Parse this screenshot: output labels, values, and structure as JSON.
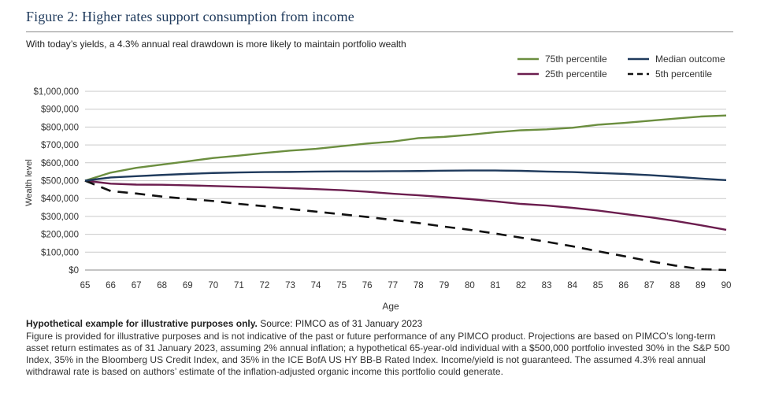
{
  "figure": {
    "title": "Figure 2: Higher rates support consumption from income",
    "subtitle": "With today’s yields, a 4.3% annual real drawdown is more likely to maintain portfolio wealth"
  },
  "chart_data": {
    "type": "line",
    "title": "Figure 2: Higher rates support consumption from income",
    "subtitle": "With today’s yields, a 4.3% annual real drawdown is more likely to maintain portfolio wealth",
    "xlabel": "Age",
    "ylabel": "Wealth level",
    "x": [
      65,
      66,
      67,
      68,
      69,
      70,
      71,
      72,
      73,
      74,
      75,
      76,
      77,
      78,
      79,
      80,
      81,
      82,
      83,
      84,
      85,
      86,
      87,
      88,
      89,
      90
    ],
    "xlim": [
      65,
      90
    ],
    "ylim": [
      0,
      1000000
    ],
    "yticks": [
      0,
      100000,
      200000,
      300000,
      400000,
      500000,
      600000,
      700000,
      800000,
      900000,
      1000000
    ],
    "ytick_labels": [
      "$0",
      "$100,000",
      "$200,000",
      "$300,000",
      "$400,000",
      "$500,000",
      "$600,000",
      "$700,000",
      "$800,000",
      "$900,000",
      "$1,000,000"
    ],
    "grid": true,
    "legend_position": "top-right",
    "series": [
      {
        "name": "75th percentile",
        "color": "#6b8e3f",
        "style": "solid",
        "values": [
          500000,
          545000,
          572000,
          590000,
          608000,
          627000,
          640000,
          655000,
          668000,
          678000,
          693000,
          708000,
          719000,
          738000,
          745000,
          757000,
          771000,
          782000,
          787000,
          796000,
          813000,
          823000,
          835000,
          847000,
          859000,
          865000
        ]
      },
      {
        "name": "Median outcome",
        "color": "#1f3a5c",
        "style": "solid",
        "values": [
          500000,
          518000,
          525000,
          532000,
          538000,
          543000,
          546000,
          548000,
          549000,
          551000,
          552000,
          552000,
          553000,
          554000,
          556000,
          557000,
          557000,
          555000,
          551000,
          548000,
          543000,
          538000,
          531000,
          522000,
          512000,
          503000
        ]
      },
      {
        "name": "25th percentile",
        "color": "#6b1d4e",
        "style": "solid",
        "values": [
          500000,
          483000,
          478000,
          477000,
          474000,
          470000,
          466000,
          463000,
          458000,
          453000,
          447000,
          438000,
          427000,
          418000,
          408000,
          397000,
          384000,
          370000,
          361000,
          348000,
          333000,
          314000,
          296000,
          275000,
          251000,
          225000
        ]
      },
      {
        "name": "5th percentile",
        "color": "#111111",
        "style": "dashed",
        "values": [
          500000,
          442000,
          428000,
          411000,
          398000,
          386000,
          370000,
          357000,
          341000,
          327000,
          312000,
          297000,
          280000,
          263000,
          243000,
          225000,
          204000,
          181000,
          158000,
          133000,
          105000,
          78000,
          50000,
          25000,
          5000,
          0
        ]
      }
    ]
  },
  "notes": {
    "bold": "Hypothetical example for illustrative purposes only.",
    "source": " Source: PIMCO as of 31 January 2023",
    "body": "Figure is provided for illustrative purposes and is not indicative of the past or future performance of any PIMCO product. Projections are based on PIMCO’s long-term asset return estimates as of 31 January 2023, assuming 2% annual inflation; a hypothetical 65-year-old individual with a $500,000 portfolio invested 30% in the S&P 500 Index, 35% in the Bloomberg US Credit Index, and 35% in the ICE BofA US HY BB-B Rated Index. Income/yield is not guaranteed. The assumed 4.3% real annual withdrawal rate is based on authors’ estimate of the inflation-adjusted organic income this portfolio could generate."
  }
}
